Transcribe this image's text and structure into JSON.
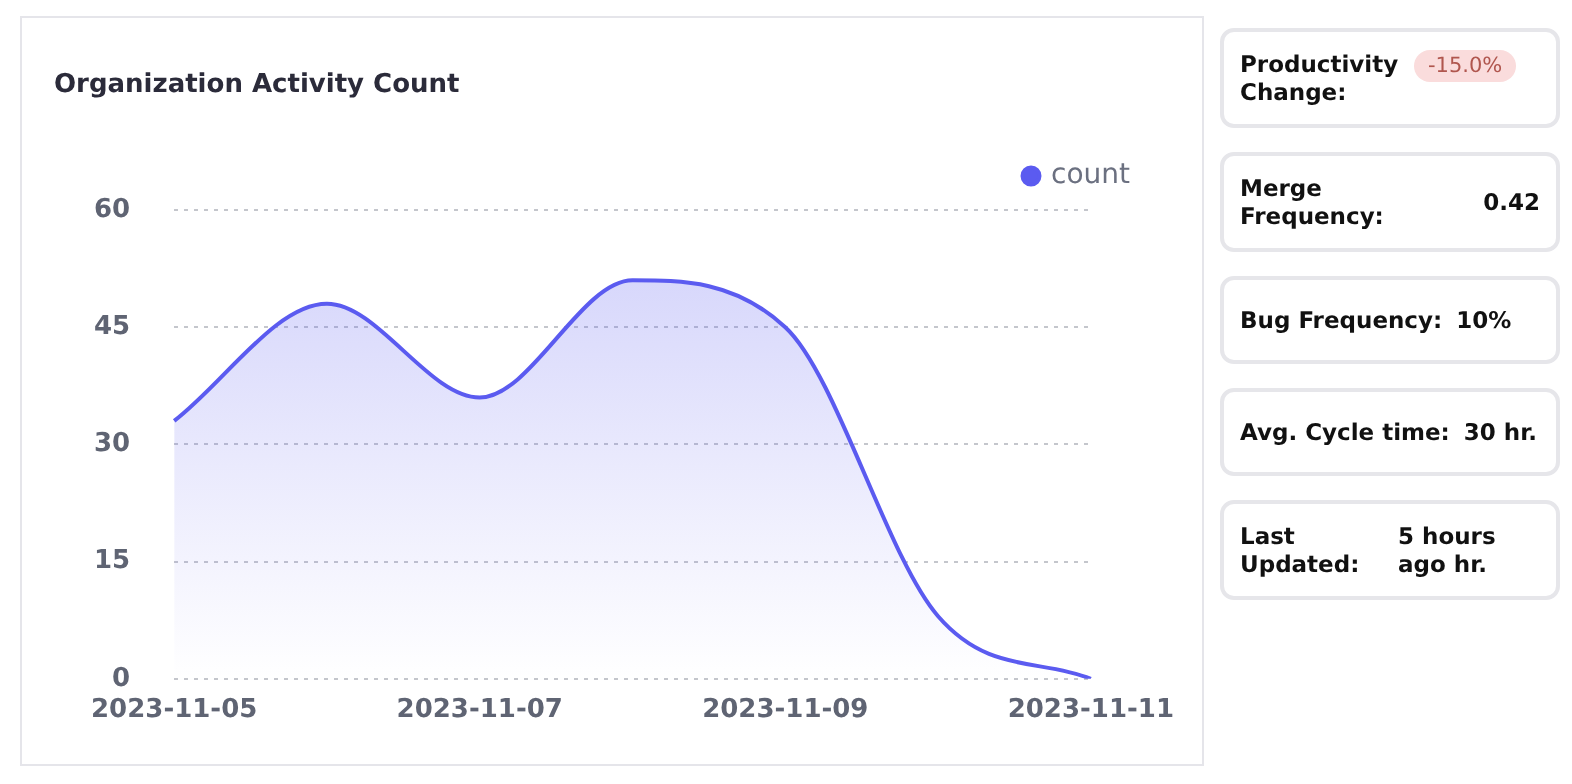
{
  "chart_data": [
    {
      "type": "area",
      "title": "Organization Activity Count",
      "categories": [
        "2023-11-05",
        null,
        "2023-11-07",
        null,
        "2023-11-09",
        null,
        "2023-11-11"
      ],
      "series": [
        {
          "name": "count",
          "color": "#5b5bf0",
          "values": [
            33,
            48,
            36,
            51,
            45,
            8,
            0
          ]
        }
      ],
      "ylim": [
        0,
        60
      ],
      "yticks": [
        0,
        15,
        30,
        45,
        60
      ],
      "grid": "y",
      "legend": "top right",
      "marker": "none"
    },
    {
      "type": "other",
      "annotations": [
        "Productivity Change:",
        "-15.0%",
        "Merge Frequency:",
        "0.42",
        "Bug Frequency:",
        "10%",
        "Avg. Cycle time:",
        "30 hr.",
        "Last Updated:",
        "5 hours ago hr."
      ]
    }
  ]
}
